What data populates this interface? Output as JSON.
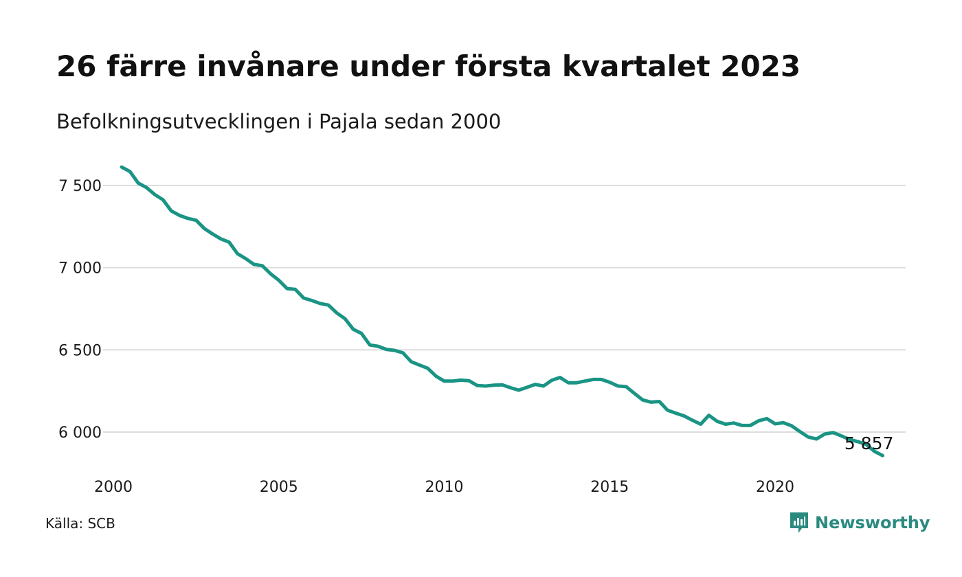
{
  "header": {
    "title": "26 färre invånare under första kvartalet 2023",
    "subtitle": "Befolkningsutvecklingen i Pajala sedan 2000"
  },
  "footer": {
    "source": "Källa: SCB",
    "brand": "Newsworthy",
    "brand_icon": "newsworthy-logo-icon",
    "brand_color": "#2a8a80"
  },
  "chart_data": {
    "type": "line",
    "title": "26 färre invånare under första kvartalet 2023",
    "subtitle": "Befolkningsutvecklingen i Pajala sedan 2000",
    "xlabel": "",
    "ylabel": "",
    "xlim": [
      2000,
      2023.25
    ],
    "ylim": [
      5850,
      7620
    ],
    "x_ticks": [
      2000,
      2005,
      2010,
      2015,
      2020
    ],
    "x_tick_labels": [
      "2000",
      "2005",
      "2010",
      "2015",
      "2020"
    ],
    "y_ticks": [
      6000,
      6500,
      7000,
      7500
    ],
    "y_tick_labels": [
      "6 000",
      "6 500",
      "7 000",
      "7 500"
    ],
    "grid": "horizontal",
    "line_color": "#1a9484",
    "end_label": "5 857",
    "series": [
      {
        "name": "",
        "x": [
          2000.25,
          2000.5,
          2000.75,
          2001.0,
          2001.25,
          2001.5,
          2001.75,
          2002.0,
          2002.25,
          2002.5,
          2002.75,
          2003.0,
          2003.25,
          2003.5,
          2003.75,
          2004.0,
          2004.25,
          2004.5,
          2004.75,
          2005.0,
          2005.25,
          2005.5,
          2005.75,
          2006.0,
          2006.25,
          2006.5,
          2006.75,
          2007.0,
          2007.25,
          2007.5,
          2007.75,
          2008.0,
          2008.25,
          2008.5,
          2008.75,
          2009.0,
          2009.25,
          2009.5,
          2009.75,
          2010.0,
          2010.25,
          2010.5,
          2010.75,
          2011.0,
          2011.25,
          2011.5,
          2011.75,
          2012.0,
          2012.25,
          2012.5,
          2012.75,
          2013.0,
          2013.25,
          2013.5,
          2013.75,
          2014.0,
          2014.25,
          2014.5,
          2014.75,
          2015.0,
          2015.25,
          2015.5,
          2015.75,
          2016.0,
          2016.25,
          2016.5,
          2016.75,
          2017.0,
          2017.25,
          2017.5,
          2017.75,
          2018.0,
          2018.25,
          2018.5,
          2018.75,
          2019.0,
          2019.25,
          2019.5,
          2019.75,
          2020.0,
          2020.25,
          2020.5,
          2020.75,
          2021.0,
          2021.25,
          2021.5,
          2021.75,
          2022.0,
          2022.25,
          2022.5,
          2022.75,
          2023.0,
          2023.25
        ],
        "values": [
          7612,
          7585,
          7515,
          7487,
          7445,
          7413,
          7345,
          7318,
          7300,
          7288,
          7238,
          7205,
          7175,
          7155,
          7085,
          7055,
          7020,
          7012,
          6963,
          6923,
          6873,
          6868,
          6815,
          6800,
          6782,
          6772,
          6725,
          6690,
          6625,
          6600,
          6530,
          6522,
          6503,
          6497,
          6482,
          6428,
          6408,
          6388,
          6340,
          6310,
          6310,
          6316,
          6312,
          6283,
          6280,
          6285,
          6287,
          6270,
          6255,
          6272,
          6290,
          6280,
          6315,
          6332,
          6300,
          6300,
          6310,
          6320,
          6320,
          6303,
          6280,
          6276,
          6235,
          6195,
          6182,
          6186,
          6133,
          6115,
          6098,
          6072,
          6048,
          6102,
          6065,
          6048,
          6055,
          6040,
          6040,
          6068,
          6082,
          6050,
          6057,
          6038,
          6003,
          5970,
          5958,
          5988,
          5997,
          5977,
          5955,
          5942,
          5925,
          5883,
          5857
        ]
      }
    ]
  }
}
